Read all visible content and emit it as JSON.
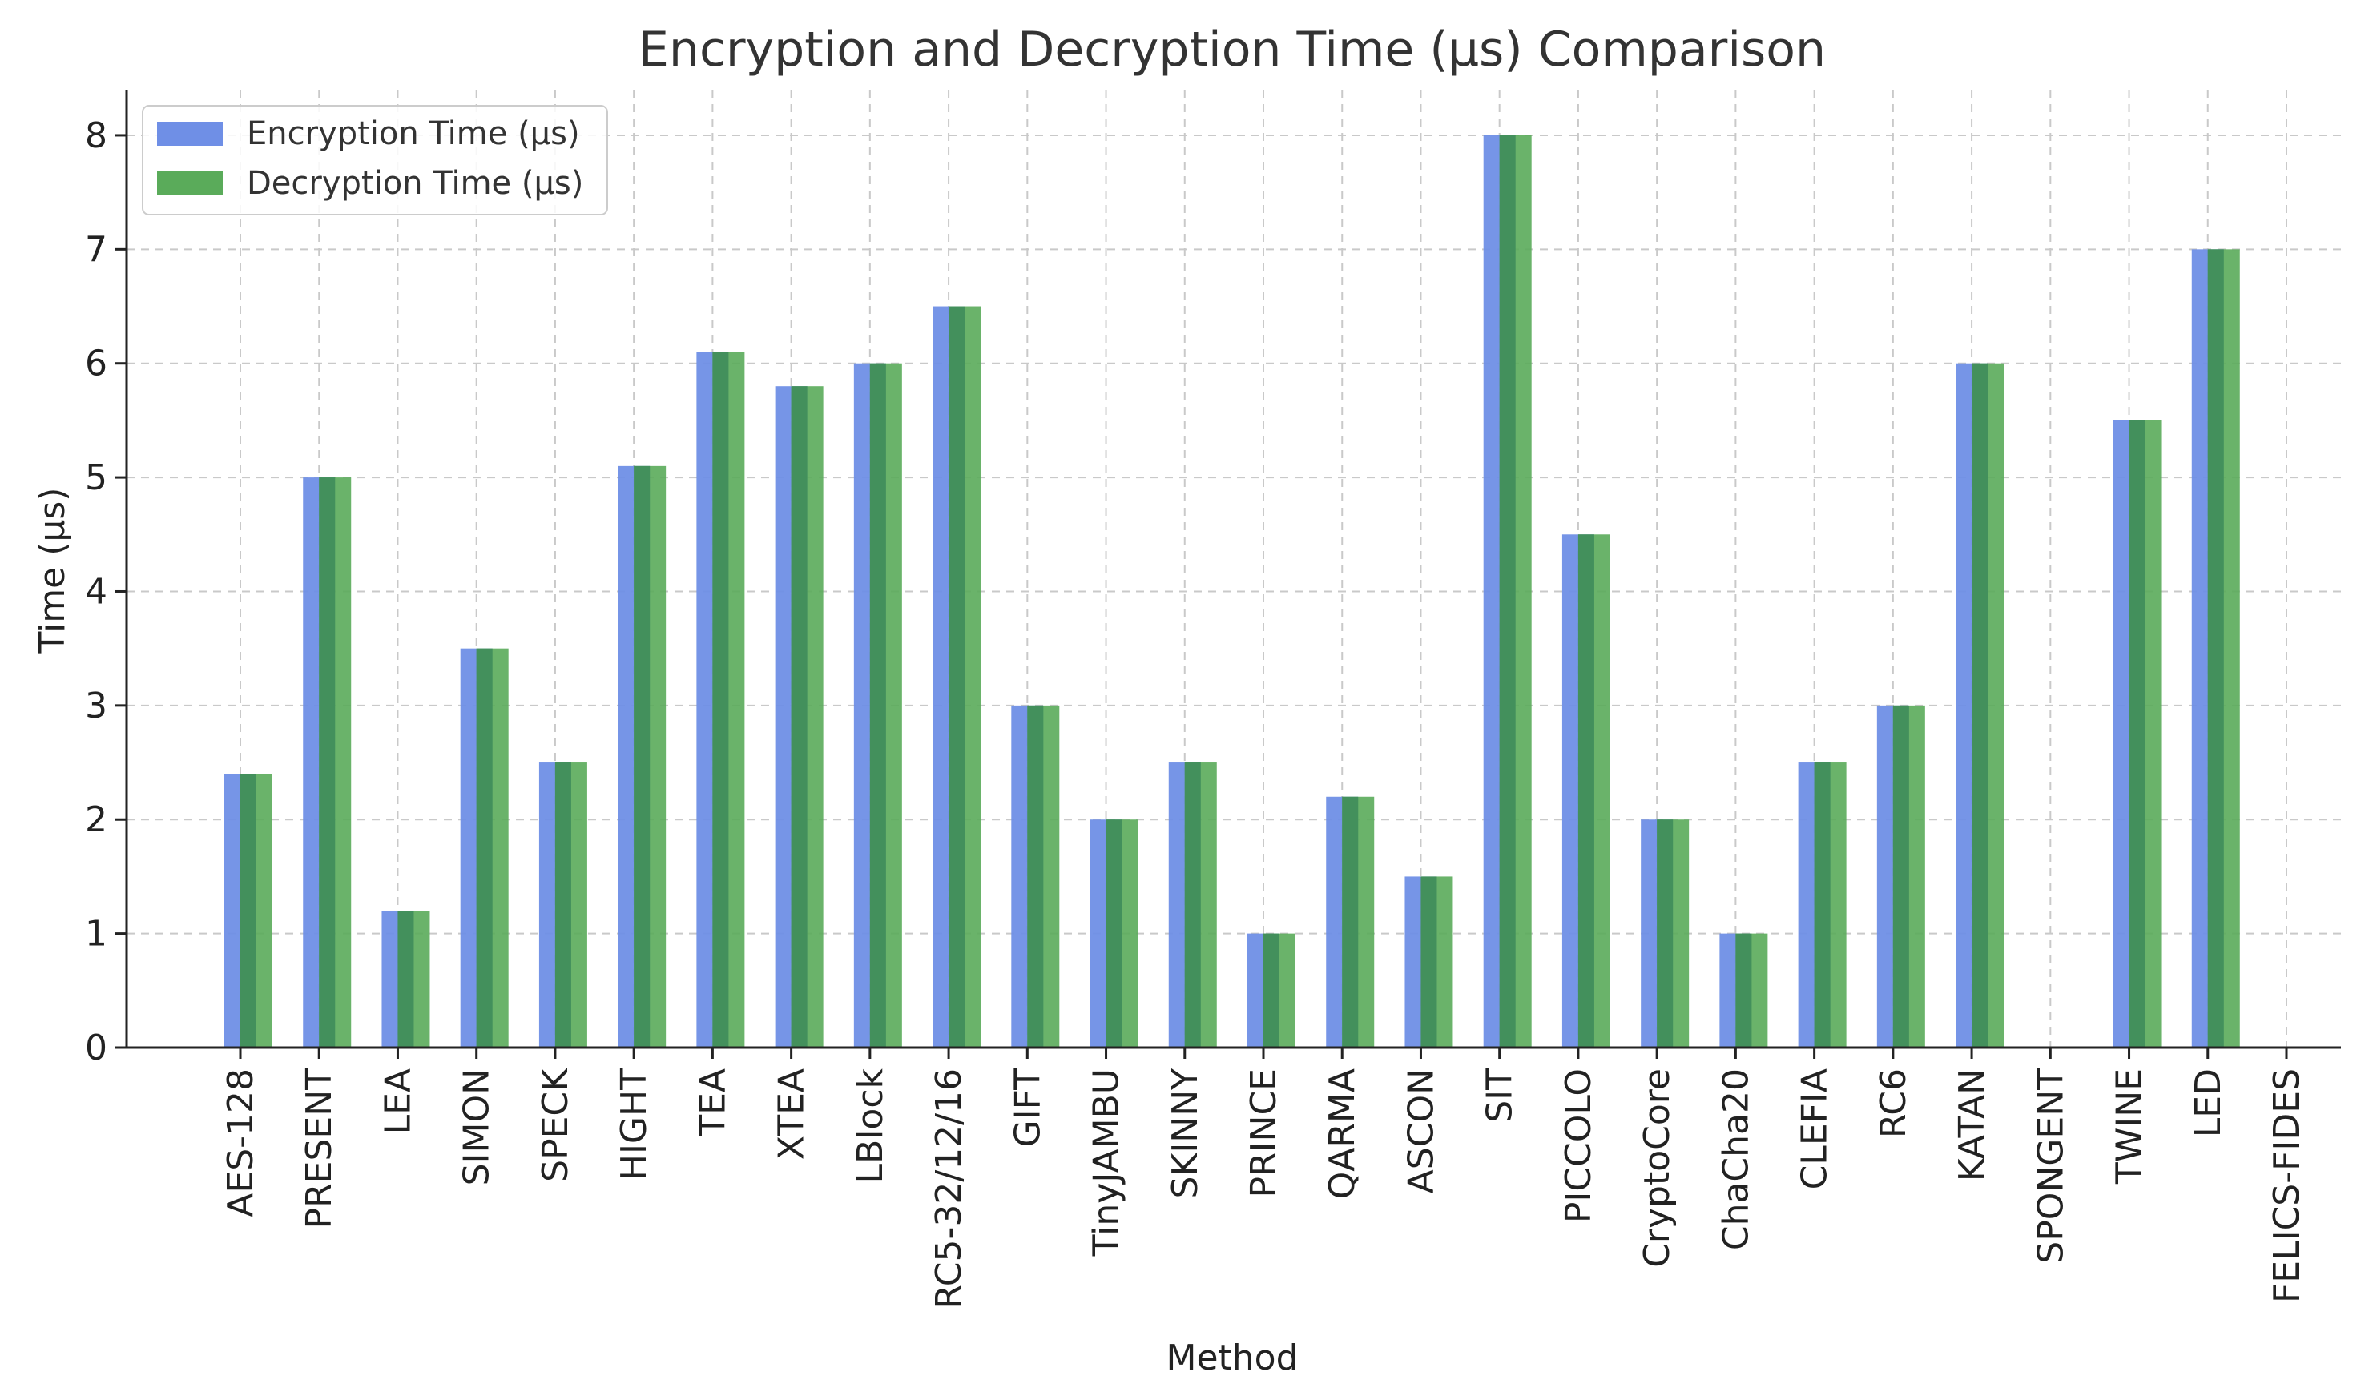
{
  "chart_data": {
    "type": "bar",
    "title": "Encryption and Decryption Time (μs) Comparison",
    "xlabel": "Method",
    "ylabel": "Time (μs)",
    "ylim": [
      0,
      8.4
    ],
    "yticks": [
      0,
      1,
      2,
      3,
      4,
      5,
      6,
      7,
      8
    ],
    "grid": true,
    "legend_position": "top-left",
    "categories": [
      "AES-128",
      "PRESENT",
      "LEA",
      "SIMON",
      "SPECK",
      "HIGHT",
      "TEA",
      "XTEA",
      "LBlock",
      "RC5-32/12/16",
      "GIFT",
      "TinyJAMBU",
      "SKINNY",
      "PRINCE",
      "QARMA",
      "ASCON",
      "SIT",
      "PICCOLO",
      "CryptoCore",
      "ChaCha20",
      "CLEFIA",
      "RC6",
      "KATAN",
      "SPONGENT",
      "TWINE",
      "LED",
      "FELICS-FIDES"
    ],
    "series": [
      {
        "name": "Encryption Time (μs)",
        "color": "#6f8fe6",
        "values": [
          2.4,
          5.0,
          1.2,
          3.5,
          2.5,
          5.1,
          6.1,
          5.8,
          6.0,
          6.5,
          3.0,
          2.0,
          2.5,
          1.0,
          2.2,
          1.5,
          8.0,
          4.5,
          2.0,
          1.0,
          2.5,
          3.0,
          6.0,
          0,
          5.5,
          7.0,
          0
        ]
      },
      {
        "name": "Decryption Time (μs)",
        "color": "#5aab5a",
        "values": [
          2.4,
          5.0,
          1.2,
          3.5,
          2.5,
          5.1,
          6.1,
          5.8,
          6.0,
          6.5,
          3.0,
          2.0,
          2.5,
          1.0,
          2.2,
          1.5,
          8.0,
          4.5,
          2.0,
          1.0,
          2.5,
          3.0,
          6.0,
          0,
          5.5,
          7.0,
          0
        ]
      }
    ],
    "overlap_color": "#3e8c5a"
  }
}
